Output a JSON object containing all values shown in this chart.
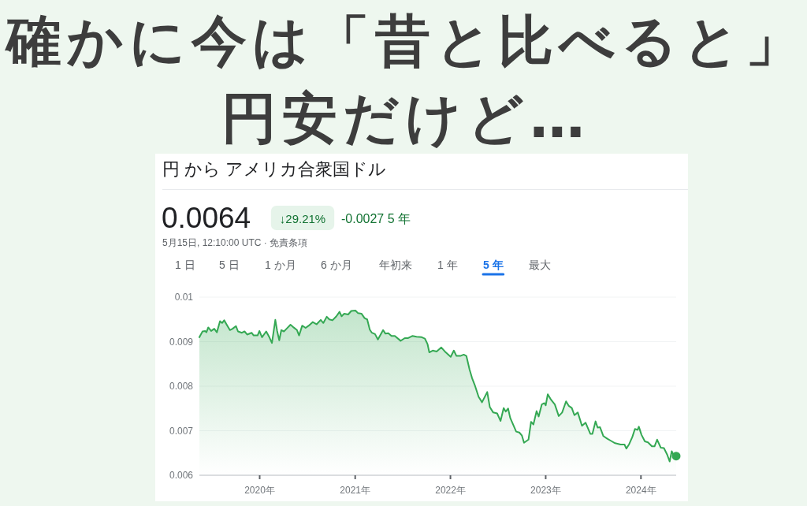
{
  "chart_data": {
    "type": "area",
    "title": "確かに今は「昔と比べると」円安だけど…",
    "subtitle": "円 から アメリカ合衆国ドル",
    "annotations": [
      "0.0064",
      "↓29.21%",
      "-0.0027 5 年",
      "5月15日, 12:10:00 UTC · 免責条項",
      "1 日",
      "5 日",
      "1 か月",
      "6 か月",
      "年初来",
      "1 年",
      "5 年",
      "最大"
    ],
    "series": [
      {
        "color": "#34a853",
        "x": [
          "2019-05-15",
          "2019-05-27",
          "2019-06-06",
          "2019-06-11",
          "2019-06-18",
          "2019-06-29",
          "2019-07-11",
          "2019-07-21",
          "2019-08-02",
          "2019-08-10",
          "2019-08-18",
          "2019-08-30",
          "2019-09-09",
          "2019-09-19",
          "2019-10-02",
          "2019-10-10",
          "2019-10-25",
          "2019-11-04",
          "2019-11-14",
          "2019-12-01",
          "2019-12-09",
          "2019-12-24",
          "2019-12-31",
          "2020-01-10",
          "2020-01-26",
          "2020-02-07",
          "2020-02-17",
          "2020-03-01",
          "2020-03-08",
          "2020-03-16",
          "2020-03-24",
          "2020-04-03",
          "2020-04-13",
          "2020-04-28",
          "2020-05-08",
          "2020-05-23",
          "2020-05-31",
          "2020-06-12",
          "2020-06-25",
          "2020-07-07",
          "2020-07-22",
          "2020-08-06",
          "2020-08-22",
          "2020-09-01",
          "2020-09-14",
          "2020-09-24",
          "2020-10-06",
          "2020-10-21",
          "2020-11-02",
          "2020-11-10",
          "2020-11-20",
          "2020-12-05",
          "2020-12-17",
          "2021-01-02",
          "2021-01-12",
          "2021-01-25",
          "2021-02-06",
          "2021-02-16",
          "2021-02-26",
          "2021-03-06",
          "2021-03-18",
          "2021-03-29",
          "2021-04-18",
          "2021-04-27",
          "2021-05-08",
          "2021-05-20",
          "2021-06-02",
          "2021-06-24",
          "2021-07-10",
          "2021-07-23",
          "2021-08-09",
          "2021-08-24",
          "2021-09-13",
          "2021-09-25",
          "2021-10-05",
          "2021-10-12",
          "2021-10-25",
          "2021-11-09",
          "2021-11-27",
          "2021-12-14",
          "2022-01-02",
          "2022-01-14",
          "2022-01-24",
          "2022-02-08",
          "2022-02-21",
          "2022-03-03",
          "2022-03-15",
          "2022-03-25",
          "2022-04-04",
          "2022-04-19",
          "2022-05-02",
          "2022-05-22",
          "2022-06-01",
          "2022-06-14",
          "2022-06-29",
          "2022-07-12",
          "2022-07-24",
          "2022-08-01",
          "2022-08-10",
          "2022-08-18",
          "2022-09-10",
          "2022-09-22",
          "2022-10-02",
          "2022-10-10",
          "2022-10-27",
          "2022-11-06",
          "2022-11-15",
          "2022-11-27",
          "2022-12-05",
          "2022-12-17",
          "2022-12-27",
          "2023-01-01",
          "2023-01-09",
          "2023-01-21",
          "2023-02-05",
          "2023-02-20",
          "2023-03-05",
          "2023-03-20",
          "2023-03-30",
          "2023-04-11",
          "2023-04-21",
          "2023-05-04",
          "2023-05-20",
          "2023-06-03",
          "2023-06-21",
          "2023-06-29",
          "2023-07-11",
          "2023-07-19",
          "2023-07-28",
          "2023-08-10",
          "2023-08-25",
          "2023-09-09",
          "2023-09-24",
          "2023-10-15",
          "2023-10-30",
          "2023-11-06",
          "2023-11-17",
          "2023-11-29",
          "2023-12-09",
          "2023-12-19",
          "2023-12-24",
          "2024-01-03",
          "2024-01-16",
          "2024-01-28",
          "2024-02-12",
          "2024-02-22",
          "2024-03-03",
          "2024-03-17",
          "2024-03-29",
          "2024-04-10",
          "2024-04-20",
          "2024-04-28",
          "2024-05-06",
          "2024-05-15"
        ],
        "values": [
          0.0091,
          0.00923,
          0.00924,
          0.00921,
          0.00932,
          0.00924,
          0.00929,
          0.00921,
          0.00946,
          0.00942,
          0.00948,
          0.00936,
          0.00926,
          0.00929,
          0.00935,
          0.00923,
          0.0092,
          0.00923,
          0.00916,
          0.0092,
          0.00914,
          0.00914,
          0.00924,
          0.0091,
          0.00923,
          0.0091,
          0.00897,
          0.00949,
          0.00924,
          0.00903,
          0.00926,
          0.00923,
          0.00929,
          0.00938,
          0.00933,
          0.00926,
          0.00914,
          0.00936,
          0.00931,
          0.00936,
          0.00944,
          0.00939,
          0.00949,
          0.00942,
          0.00956,
          0.0095,
          0.00948,
          0.00957,
          0.00967,
          0.00957,
          0.00963,
          0.00961,
          0.00969,
          0.0097,
          0.00964,
          0.00963,
          0.00953,
          0.0095,
          0.00927,
          0.0092,
          0.00917,
          0.00905,
          0.00926,
          0.00918,
          0.00919,
          0.00913,
          0.00913,
          0.00902,
          0.00908,
          0.00908,
          0.00913,
          0.00911,
          0.0091,
          0.00907,
          0.00895,
          0.00876,
          0.0088,
          0.00878,
          0.00887,
          0.00876,
          0.00866,
          0.0088,
          0.00868,
          0.00868,
          0.00871,
          0.00868,
          0.00838,
          0.00818,
          0.00803,
          0.00776,
          0.00764,
          0.00787,
          0.00753,
          0.00741,
          0.00739,
          0.00722,
          0.00751,
          0.00743,
          0.0075,
          0.00729,
          0.00698,
          0.00696,
          0.00689,
          0.00673,
          0.0068,
          0.0072,
          0.00714,
          0.00744,
          0.00732,
          0.00759,
          0.00762,
          0.00757,
          0.00782,
          0.0077,
          0.00759,
          0.00733,
          0.00741,
          0.00766,
          0.00756,
          0.00751,
          0.00735,
          0.00741,
          0.00711,
          0.00718,
          0.00693,
          0.00693,
          0.00721,
          0.00707,
          0.00708,
          0.00688,
          0.00682,
          0.00677,
          0.00672,
          0.00669,
          0.00669,
          0.0066,
          0.0067,
          0.00686,
          0.00704,
          0.00702,
          0.00709,
          0.00691,
          0.00676,
          0.00674,
          0.00665,
          0.00665,
          0.0068,
          0.00662,
          0.00661,
          0.00647,
          0.00631,
          0.00654,
          0.00643,
          0.00643
        ]
      },
      {
        "type": "scatter",
        "color": "#34a853",
        "marker": "circle",
        "x": [
          "2024-05-15"
        ],
        "values": [
          0.00643
        ]
      }
    ],
    "xlim": [
      "2019-05-15",
      "2024-05-15"
    ],
    "xticks": [
      {
        "value": "2020-01-01",
        "label": "2020年"
      },
      {
        "value": "2021-01-01",
        "label": "2021年"
      },
      {
        "value": "2022-01-01",
        "label": "2022年"
      },
      {
        "value": "2023-01-01",
        "label": "2023年"
      },
      {
        "value": "2024-01-01",
        "label": "2024年"
      }
    ],
    "ylim": [
      0.006,
      0.01
    ],
    "yticks": [
      0.006,
      0.007,
      0.008,
      0.009,
      0.01
    ],
    "grid": "y"
  }
}
